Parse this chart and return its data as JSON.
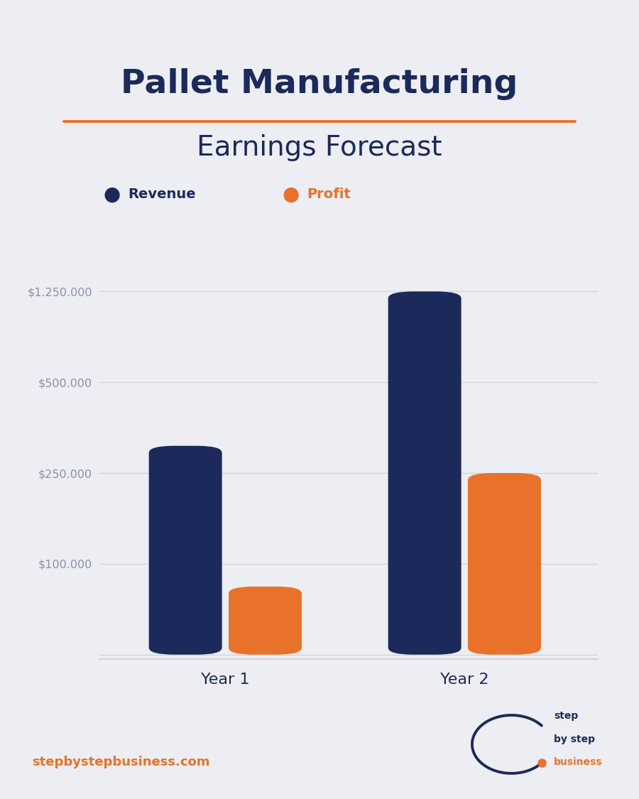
{
  "title_line1": "Pallet Manufacturing",
  "title_line2": "Earnings Forecast",
  "title_color": "#1B2A5A",
  "underline_color": "#E8722A",
  "background_color": "#EDEEF3",
  "plot_bg_color": "#EDEEF3",
  "navy_color": "#1B2A5A",
  "orange_color": "#E8722A",
  "categories": [
    "Year 1",
    "Year 2"
  ],
  "revenue": [
    325000,
    1250000
  ],
  "profit": [
    75000,
    250000
  ],
  "ytick_positions": [
    0,
    1,
    2,
    3,
    4
  ],
  "ytick_labels": [
    "",
    "$100.000",
    "$250.000",
    "$500.000",
    "$1.250.000"
  ],
  "ytick_data_values": [
    0,
    100000,
    250000,
    500000,
    1250000
  ],
  "legend_revenue": "Revenue",
  "legend_profit": "Profit",
  "bar_width": 0.22,
  "footer_text": "stepbystepbusiness.com",
  "footer_color": "#E8722A"
}
